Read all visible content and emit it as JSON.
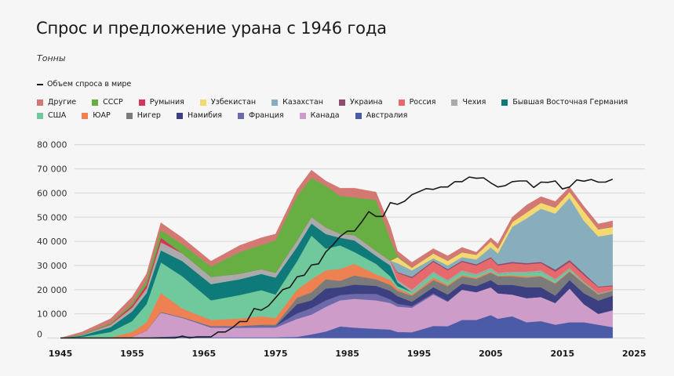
{
  "chart_data": {
    "type": "area",
    "stacked": true,
    "title": "Спрос и предложение урана с 1946 года",
    "ylabel": "Тонны",
    "xlabel": "",
    "ylim": [
      0,
      80000
    ],
    "xlim": [
      1945,
      2025
    ],
    "grid": true,
    "legend_position": "top",
    "y_ticks": [
      "0",
      "10 000",
      "20 000",
      "30 000",
      "40 000",
      "50 000",
      "60 000",
      "70 000",
      "80 000"
    ],
    "y_tick_values": [
      0,
      10000,
      20000,
      30000,
      40000,
      50000,
      60000,
      70000,
      80000
    ],
    "x_ticks": [
      "1945",
      "1955",
      "1965",
      "1975",
      "1985",
      "1995",
      "2005",
      "2015",
      "2025"
    ],
    "years": [
      1945,
      1948,
      1952,
      1955,
      1957,
      1959,
      1962,
      1966,
      1970,
      1973,
      1975,
      1978,
      1980,
      1982,
      1984,
      1986,
      1989,
      1991,
      1992,
      1994,
      1997,
      1999,
      2001,
      2003,
      2005,
      2006,
      2008,
      2010,
      2012,
      2014,
      2016,
      2018,
      2020,
      2022
    ],
    "series": [
      {
        "name": "Австралия",
        "color": "#4b5ba7",
        "values": [
          0,
          0,
          0,
          0,
          200,
          500,
          800,
          300,
          300,
          300,
          300,
          500,
          1500,
          2700,
          4800,
          4300,
          3800,
          3500,
          2500,
          2400,
          5000,
          4900,
          7500,
          7500,
          9500,
          8000,
          9000,
          6500,
          7000,
          5500,
          6500,
          6500,
          5500,
          4500
        ]
      },
      {
        "name": "Канада",
        "color": "#cd9cc9",
        "values": [
          0,
          0,
          0,
          500,
          2800,
          10000,
          7500,
          4000,
          3900,
          4000,
          4000,
          7400,
          8200,
          10200,
          10800,
          11900,
          11800,
          11000,
          10500,
          10100,
          13000,
          10100,
          12500,
          11500,
          11500,
          10500,
          9000,
          10000,
          10000,
          9000,
          14000,
          7500,
          4500,
          7000
        ]
      },
      {
        "name": "Франция",
        "color": "#6e69a9",
        "values": [
          0,
          0,
          0,
          0,
          0,
          300,
          300,
          600,
          800,
          900,
          700,
          2300,
          2700,
          2700,
          2200,
          2100,
          2700,
          1500,
          1200,
          700,
          500,
          300,
          0,
          0,
          0,
          0,
          0,
          0,
          0,
          0,
          0,
          0,
          0,
          0
        ]
      },
      {
        "name": "Намибия",
        "color": "#3c3f80",
        "values": [
          0,
          0,
          0,
          0,
          0,
          0,
          0,
          0,
          0,
          0,
          0,
          3800,
          3200,
          4900,
          3200,
          3800,
          3300,
          3500,
          3100,
          1800,
          2500,
          2700,
          2500,
          2500,
          3000,
          3500,
          4000,
          4500,
          4000,
          3000,
          3500,
          4500,
          5500,
          6000
        ]
      },
      {
        "name": "Нигер",
        "color": "#7b7b7b",
        "values": [
          0,
          0,
          0,
          0,
          0,
          0,
          0,
          0,
          0,
          300,
          500,
          2700,
          3300,
          3800,
          2700,
          3800,
          2700,
          2500,
          2200,
          2500,
          3000,
          3500,
          3000,
          3000,
          3000,
          3500,
          3500,
          4000,
          4500,
          5000,
          3500,
          4000,
          2500,
          2000
        ]
      },
      {
        "name": "ЮАР",
        "color": "#ee8152",
        "values": [
          0,
          0,
          300,
          2000,
          3500,
          7800,
          3600,
          2600,
          3100,
          3500,
          2800,
          3300,
          5400,
          3700,
          4900,
          4800,
          2100,
          2000,
          1000,
          500,
          1000,
          500,
          500,
          500,
          500,
          300,
          500,
          500,
          300,
          300,
          300,
          200,
          200,
          100
        ]
      },
      {
        "name": "США",
        "color": "#70c89d",
        "values": [
          0,
          500,
          2200,
          4500,
          7500,
          12700,
          13300,
          8100,
          9700,
          10800,
          9700,
          11800,
          18100,
          9000,
          9700,
          4900,
          4300,
          1500,
          1000,
          1000,
          2000,
          1500,
          1500,
          1000,
          1000,
          700,
          1000,
          1500,
          1700,
          1200,
          700,
          300,
          200,
          100
        ]
      },
      {
        "name": "Бывшая Восточная Германия",
        "color": "#0e7a7a",
        "values": [
          0,
          500,
          2000,
          4000,
          4500,
          5000,
          6300,
          6700,
          6500,
          6700,
          7000,
          5900,
          5000,
          6000,
          3200,
          4800,
          3300,
          4500,
          1500,
          0,
          0,
          0,
          0,
          0,
          0,
          0,
          0,
          0,
          0,
          0,
          0,
          0,
          0,
          0
        ]
      },
      {
        "name": "Чехия",
        "color": "#a9aaa9",
        "values": [
          0,
          300,
          1000,
          1500,
          2000,
          3300,
          3200,
          3000,
          2300,
          2000,
          2000,
          2700,
          2700,
          2800,
          1600,
          2200,
          2100,
          2000,
          1000,
          1000,
          500,
          500,
          500,
          500,
          500,
          500,
          500,
          500,
          500,
          400,
          500,
          300,
          200,
          200
        ]
      },
      {
        "name": "Россия",
        "color": "#e66a6c",
        "values": [
          0,
          0,
          0,
          0,
          0,
          0,
          0,
          0,
          0,
          0,
          0,
          0,
          0,
          0,
          0,
          0,
          0,
          0,
          3000,
          4800,
          4000,
          4000,
          3500,
          3500,
          4000,
          3000,
          3500,
          3000,
          3000,
          3100,
          2500,
          2700,
          2400,
          1600
        ]
      },
      {
        "name": "Украина",
        "color": "#8f4b6c",
        "values": [
          0,
          0,
          0,
          0,
          0,
          0,
          0,
          0,
          0,
          0,
          0,
          0,
          0,
          0,
          0,
          0,
          0,
          0,
          300,
          500,
          500,
          500,
          500,
          500,
          500,
          500,
          500,
          500,
          500,
          800,
          800,
          800,
          300,
          300
        ]
      },
      {
        "name": "Казахстан",
        "color": "#88adbd",
        "values": [
          0,
          0,
          0,
          0,
          0,
          0,
          0,
          0,
          0,
          0,
          0,
          0,
          0,
          0,
          0,
          0,
          0,
          0,
          3700,
          2700,
          1000,
          1500,
          1500,
          2000,
          4000,
          4500,
          14500,
          18500,
          22000,
          23200,
          25700,
          21700,
          20700,
          21200
        ]
      },
      {
        "name": "Узбекистан",
        "color": "#f4d870",
        "values": [
          0,
          0,
          0,
          0,
          0,
          0,
          0,
          0,
          0,
          0,
          0,
          0,
          0,
          0,
          0,
          0,
          0,
          0,
          2500,
          1100,
          2000,
          2000,
          2000,
          2000,
          2500,
          2000,
          2000,
          2500,
          2500,
          2500,
          2500,
          4000,
          3000,
          3000
        ]
      },
      {
        "name": "Румыния",
        "color": "#d6335d",
        "values": [
          0,
          0,
          300,
          1000,
          1500,
          1900,
          0,
          0,
          0,
          0,
          0,
          0,
          0,
          0,
          0,
          0,
          0,
          0,
          0,
          0,
          0,
          0,
          0,
          0,
          0,
          0,
          0,
          0,
          0,
          0,
          0,
          0,
          0,
          0
        ]
      },
      {
        "name": "СССР",
        "color": "#67ae43",
        "values": [
          0,
          300,
          500,
          1000,
          2000,
          3200,
          3800,
          4300,
          9000,
          10000,
          13500,
          18400,
          16200,
          17200,
          15700,
          15600,
          21000,
          9000,
          500,
          0,
          0,
          0,
          0,
          0,
          0,
          0,
          0,
          0,
          0,
          0,
          0,
          0,
          0,
          0
        ]
      },
      {
        "name": "Другие",
        "color": "#d37872",
        "values": [
          0,
          900,
          1700,
          2500,
          2500,
          3000,
          2700,
          2200,
          2700,
          3000,
          2500,
          2700,
          3200,
          2000,
          3200,
          3800,
          3300,
          5000,
          2000,
          2200,
          2000,
          2000,
          2000,
          1000,
          1500,
          2000,
          2000,
          3000,
          2500,
          2500,
          2000,
          2000,
          2200,
          2500
        ]
      }
    ],
    "demand": {
      "name": "Объем спроса в мире",
      "color": "#1a1a1a",
      "x": [
        1945,
        1961,
        1962,
        1963,
        1964,
        1966,
        1967,
        1968,
        1969,
        1970,
        1971,
        1972,
        1973,
        1974,
        1976,
        1977,
        1978,
        1979,
        1980,
        1981,
        1982,
        1983,
        1984,
        1985,
        1986,
        1987,
        1988,
        1989,
        1990,
        1991,
        1992,
        1993,
        1994,
        1996,
        1997,
        1998,
        1999,
        2000,
        2001,
        2002,
        2003,
        2004,
        2005,
        2006,
        2007,
        2008,
        2009,
        2010,
        2011,
        2012,
        2013,
        2014,
        2015,
        2016,
        2017,
        2018,
        2019,
        2020,
        2021,
        2022
      ],
      "y": [
        0,
        0,
        800,
        0,
        500,
        500,
        2500,
        2500,
        4300,
        6800,
        6800,
        12200,
        11500,
        13300,
        20000,
        21000,
        25300,
        26000,
        30200,
        30700,
        35600,
        38500,
        42000,
        44200,
        44200,
        48000,
        52300,
        50300,
        50300,
        56000,
        55300,
        56600,
        59300,
        61800,
        61500,
        62500,
        62500,
        64700,
        64700,
        66600,
        66100,
        66300,
        64200,
        62500,
        63000,
        64700,
        65000,
        65000,
        62300,
        64500,
        64400,
        65000,
        61700,
        62500,
        65400,
        64900,
        65600,
        64500,
        64500,
        65700
      ]
    }
  },
  "legend": {
    "row1": [
      "Другие",
      "СССР",
      "Румыния",
      "Узбекистан",
      "Казахстан",
      "Украина",
      "Россия",
      "Чехия",
      "Бывшая Восточная Германия"
    ],
    "row2": [
      "США",
      "ЮАР",
      "Нигер",
      "Намибия",
      "Франция",
      "Канада",
      "Австралия"
    ]
  }
}
